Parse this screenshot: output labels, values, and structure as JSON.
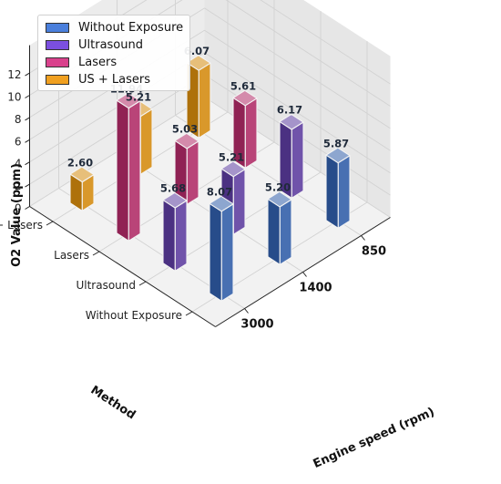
{
  "chart_data": {
    "type": "bar",
    "title": "",
    "xlabel": "Method",
    "ylabel": "Engine speed (rpm)",
    "zlabel": "O2 Value (ppm)",
    "methods": [
      "Without Exposure",
      "Ultrasound",
      "Lasers",
      "US + Lasers"
    ],
    "engine_speeds": [
      "3000",
      "1400",
      "850"
    ],
    "zlim": [
      0,
      12
    ],
    "zticks": [
      "0",
      "2",
      "4",
      "6",
      "8",
      "10",
      "12"
    ],
    "series": [
      {
        "name": "Without Exposure",
        "color": "#2f5da8",
        "values": [
          8.07,
          5.2,
          5.87
        ],
        "labels": [
          "8.07",
          "5.20",
          "5.87"
        ]
      },
      {
        "name": "Ultrasound",
        "color": "#5c3c9e",
        "values": [
          5.68,
          5.21,
          6.17
        ],
        "labels": [
          "5.68",
          "5.21",
          "6.17"
        ]
      },
      {
        "name": "Lasers",
        "color": "#b02a66",
        "values": [
          11.94,
          5.03,
          5.61
        ],
        "labels": [
          "11.94",
          "5.03",
          "5.61"
        ]
      },
      {
        "name": "US + Lasers",
        "color": "#d48a0e",
        "values": [
          2.6,
          5.21,
          6.07
        ],
        "labels": [
          "2.60",
          "5.21",
          "6.07"
        ]
      }
    ],
    "grid": true,
    "legend_position": "top-left"
  },
  "legend": {
    "items": [
      {
        "label": "Without Exposure",
        "color": "#4a7fdc"
      },
      {
        "label": "Ultrasound",
        "color": "#7b4fe0"
      },
      {
        "label": "Lasers",
        "color": "#d9418c"
      },
      {
        "label": "US + Lasers",
        "color": "#f0a020"
      }
    ]
  }
}
